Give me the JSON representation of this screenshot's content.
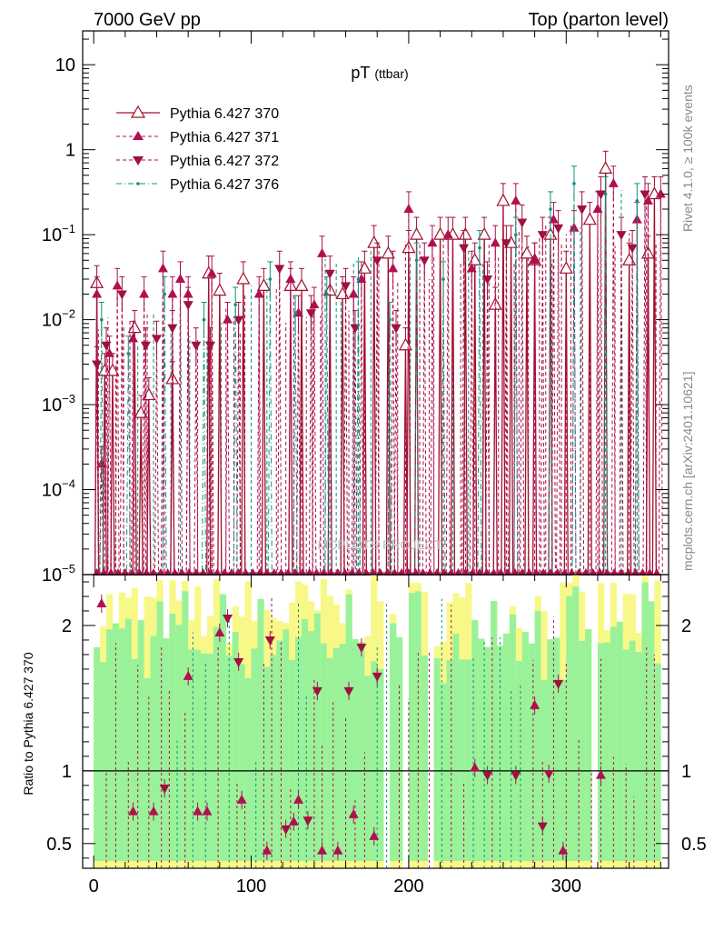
{
  "header": {
    "left": "7000 GeV pp",
    "right": "Top (parton level)"
  },
  "side": {
    "rivet": "Rivet 4.1.0, ≥ 100k events",
    "mcplots": "mcplots.cern.ch [arXiv:2401.10621]"
  },
  "watermark": "MCPLOTS PROJECT",
  "colors": {
    "s370": "#a0102c",
    "s371": "#b01050",
    "s372": "#a01040",
    "s376": "#109080",
    "band_green": "#99f299",
    "band_yellow": "#f8f888"
  },
  "chart_data": {
    "type": "line",
    "title": "pT",
    "title_sub": "(ttbar)",
    "xlabel": "",
    "ylabel": "",
    "ratio_ylabel": "Ratio to Pythia 6.427 370",
    "xlim": [
      -7,
      365
    ],
    "ylim": [
      1e-05,
      25
    ],
    "yscale": "log",
    "ratio_ylim": [
      0.33,
      2.35
    ],
    "x_ticks": [
      0,
      100,
      200,
      300
    ],
    "x_tick_labels": [
      "0",
      "100",
      "200",
      "300"
    ],
    "y_ticks": [
      1e-05,
      0.0001,
      0.001,
      0.01,
      0.1,
      1,
      10
    ],
    "y_tick_labels": [
      "10−5",
      "10−4",
      "10−3",
      "10−2",
      "10−1",
      "1",
      "10"
    ],
    "ratio_ticks": [
      0.5,
      1,
      2
    ],
    "ratio_tick_labels": [
      "0.5",
      "1",
      "2"
    ],
    "legend": [
      {
        "name": "Pythia 6.427 370",
        "marker": "open-triangle-up",
        "line": "solid"
      },
      {
        "name": "Pythia 6.427 371",
        "marker": "triangle-up",
        "line": "dashed"
      },
      {
        "name": "Pythia 6.427 372",
        "marker": "triangle-down",
        "line": "dashed"
      },
      {
        "name": "Pythia 6.427 376",
        "marker": "dot",
        "line": "dash-dot"
      }
    ],
    "series": [
      {
        "name": "Pythia 6.427 370",
        "x": [
          2,
          7,
          12,
          26,
          30,
          35,
          50,
          73,
          80,
          95,
          108,
          125,
          132,
          150,
          158,
          172,
          178,
          187,
          198,
          200,
          205,
          220,
          228,
          236,
          242,
          248,
          255,
          260,
          265,
          275,
          280,
          290,
          300,
          315,
          325,
          340,
          352,
          356
        ],
        "y": [
          0.027,
          0.0025,
          0.0025,
          0.008,
          0.0008,
          0.0013,
          0.002,
          0.035,
          0.022,
          0.03,
          0.025,
          0.025,
          0.025,
          0.022,
          0.02,
          0.04,
          0.08,
          0.06,
          0.005,
          0.07,
          0.1,
          0.1,
          0.1,
          0.1,
          0.05,
          0.1,
          0.015,
          0.25,
          0.08,
          0.06,
          0.05,
          0.1,
          0.04,
          0.15,
          0.6,
          0.05,
          0.06,
          0.3
        ]
      },
      {
        "name": "Pythia 6.427 371",
        "x": [
          2,
          5,
          10,
          15,
          25,
          32,
          44,
          50,
          55,
          60,
          75,
          85,
          105,
          125,
          130,
          140,
          145,
          165,
          170,
          190,
          200,
          215,
          225,
          240,
          255,
          268,
          280,
          292,
          305,
          320,
          330,
          345,
          352,
          360
        ],
        "y": [
          0.02,
          0.0002,
          0.004,
          0.025,
          0.006,
          0.02,
          0.04,
          0.02,
          0.03,
          0.02,
          0.035,
          0.01,
          0.02,
          0.03,
          0.012,
          0.015,
          0.06,
          0.02,
          0.03,
          0.04,
          0.2,
          0.08,
          0.1,
          0.04,
          0.08,
          0.25,
          0.05,
          0.15,
          0.12,
          0.2,
          0.4,
          0.15,
          0.25,
          0.3
        ]
      },
      {
        "name": "Pythia 6.427 372",
        "x": [
          2,
          8,
          18,
          33,
          40,
          50,
          60,
          65,
          74,
          92,
          118,
          138,
          150,
          160,
          166,
          180,
          192,
          210,
          235,
          250,
          262,
          272,
          285,
          295,
          310,
          322,
          335,
          342,
          350
        ],
        "y": [
          0.003,
          0.005,
          0.02,
          0.005,
          0.006,
          0.008,
          0.015,
          0.005,
          0.005,
          0.01,
          0.04,
          0.012,
          0.035,
          0.025,
          0.008,
          0.05,
          0.008,
          0.05,
          0.07,
          0.03,
          0.08,
          0.14,
          0.1,
          0.12,
          0.2,
          0.3,
          0.1,
          0.07,
          0.3
        ]
      },
      {
        "name": "Pythia 6.427 376",
        "x": [
          5,
          22,
          45,
          70,
          90,
          112,
          128,
          148,
          168,
          188,
          205,
          222,
          245,
          268,
          290,
          305,
          325,
          345
        ],
        "y": [
          0.01,
          0.004,
          0.02,
          0.01,
          0.015,
          0.03,
          0.012,
          0.02,
          0.03,
          0.01,
          0.05,
          0.03,
          0.07,
          0.1,
          0.2,
          0.4,
          0.3,
          0.25
        ]
      }
    ],
    "ratio_series": [
      {
        "name": "Pythia 6.427 371",
        "x": [
          5,
          25,
          38,
          60,
          66,
          72,
          80,
          94,
          110,
          127,
          130,
          145,
          155,
          165,
          178,
          242,
          280,
          298,
          322
        ],
        "y": [
          2.15,
          0.72,
          0.72,
          1.65,
          0.72,
          0.72,
          1.95,
          0.8,
          0.45,
          0.65,
          0.8,
          0.45,
          0.45,
          0.7,
          0.55,
          1.02,
          1.45,
          0.45,
          0.97
        ]
      },
      {
        "name": "Pythia 6.427 372",
        "x": [
          45,
          85,
          92,
          112,
          122,
          136,
          142,
          162,
          170,
          180,
          250,
          268,
          285,
          289,
          295
        ],
        "y": [
          0.88,
          2.05,
          1.75,
          1.9,
          0.6,
          0.66,
          1.55,
          1.55,
          1.85,
          1.65,
          0.97,
          0.97,
          0.62,
          0.98,
          1.6
        ]
      }
    ]
  }
}
